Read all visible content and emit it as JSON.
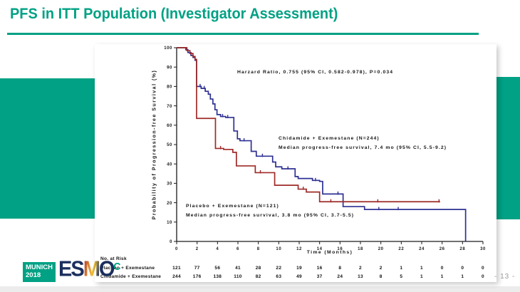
{
  "slide": {
    "title": "PFS in ITT Population (Investigator Assessment)",
    "page_number": "- 13 -",
    "logo": {
      "venue": "MUNICH",
      "year": "2018",
      "letters": [
        "E",
        "S",
        "M",
        "O"
      ],
      "congress_c": "C"
    }
  },
  "colors": {
    "teal": "#00a184",
    "chidamide_blue": "#2e3192",
    "placebo_red": "#9e2b28"
  },
  "chart_data": {
    "type": "line",
    "subtype": "kaplan-meier-step",
    "title": "",
    "xlabel": "Time (Months)",
    "ylabel": "Probability of Progression-free Survival (%)",
    "xlim": [
      0,
      30
    ],
    "ylim": [
      0,
      100
    ],
    "xticks": [
      0,
      2,
      4,
      6,
      8,
      10,
      12,
      14,
      16,
      18,
      20,
      22,
      24,
      26,
      28,
      30
    ],
    "yticks": [
      0,
      10,
      20,
      30,
      40,
      50,
      60,
      70,
      80,
      90,
      100
    ],
    "grid": false,
    "hazard_note": "Harzard Ratio, 0.755 (95% CI, 0.582-0.978), P=0.034",
    "series": [
      {
        "id": "chidamide",
        "name": "Chidamide + Exemestane",
        "n": 244,
        "label_line1": "Chidamide + Exemestane (N=244)",
        "label_line2": "Median progress-free survival, 7.4 mo (95% CI, 5.5-9.2)",
        "median_months": 7.4,
        "color": "#2e3192",
        "steps": [
          [
            0,
            100
          ],
          [
            0.9,
            99
          ],
          [
            1.1,
            97.5
          ],
          [
            1.4,
            96
          ],
          [
            1.6,
            95
          ],
          [
            1.8,
            93.5
          ],
          [
            1.95,
            80
          ],
          [
            2.4,
            79
          ],
          [
            2.8,
            77.5
          ],
          [
            3.1,
            76
          ],
          [
            3.3,
            73.5
          ],
          [
            3.55,
            71
          ],
          [
            3.75,
            68
          ],
          [
            3.95,
            65.5
          ],
          [
            4.3,
            64.5
          ],
          [
            4.8,
            64
          ],
          [
            5.6,
            57
          ],
          [
            5.95,
            53
          ],
          [
            6.2,
            52
          ],
          [
            7.3,
            46.5
          ],
          [
            7.8,
            44
          ],
          [
            9.4,
            41
          ],
          [
            9.7,
            38.5
          ],
          [
            10.3,
            37.5
          ],
          [
            11.6,
            33.5
          ],
          [
            11.9,
            32.5
          ],
          [
            13.3,
            31.5
          ],
          [
            14.0,
            31
          ],
          [
            14.3,
            24.5
          ],
          [
            16.3,
            18
          ],
          [
            18.4,
            16.5
          ],
          [
            28.3,
            16.5
          ],
          [
            28.3,
            0
          ]
        ],
        "censors": [
          2.3,
          2.7,
          4.5,
          5.0,
          6.6,
          8.4,
          10.9,
          13.6,
          15.8,
          19.8,
          21.7
        ]
      },
      {
        "id": "placebo",
        "name": "Placebo + Exemestane",
        "n": 121,
        "label_line1": "Placebo + Exemestane (N=121)",
        "label_line2": "Median progress-free survival, 3.8 mo (95% CI, 3.7-5.5)",
        "median_months": 3.8,
        "color": "#9e2b28",
        "steps": [
          [
            0,
            100
          ],
          [
            1.0,
            98.5
          ],
          [
            1.3,
            97
          ],
          [
            1.6,
            95.5
          ],
          [
            1.8,
            94
          ],
          [
            1.95,
            63.5
          ],
          [
            3.8,
            48
          ],
          [
            4.6,
            47.5
          ],
          [
            5.5,
            46
          ],
          [
            5.85,
            39
          ],
          [
            7.7,
            35.5
          ],
          [
            9.6,
            29
          ],
          [
            11.9,
            27
          ],
          [
            12.7,
            25.5
          ],
          [
            14.0,
            20.5
          ],
          [
            25.8,
            20.5
          ]
        ],
        "censors": [
          4.3,
          8.2,
          12.4,
          15.1,
          19.7,
          25.7
        ]
      }
    ],
    "risk_table": {
      "heading": "No. at Risk",
      "months": [
        0,
        2,
        4,
        6,
        8,
        10,
        12,
        14,
        16,
        18,
        20,
        22,
        24,
        26,
        28,
        30
      ],
      "rows": [
        {
          "label": "Placebo + Exemestane",
          "values": [
            121,
            77,
            56,
            41,
            28,
            22,
            19,
            16,
            8,
            2,
            2,
            1,
            1,
            0,
            0,
            0
          ]
        },
        {
          "label": "Chidamide + Exemestane",
          "values": [
            244,
            176,
            138,
            110,
            82,
            63,
            49,
            37,
            24,
            13,
            8,
            5,
            1,
            1,
            1,
            0
          ]
        }
      ]
    }
  }
}
